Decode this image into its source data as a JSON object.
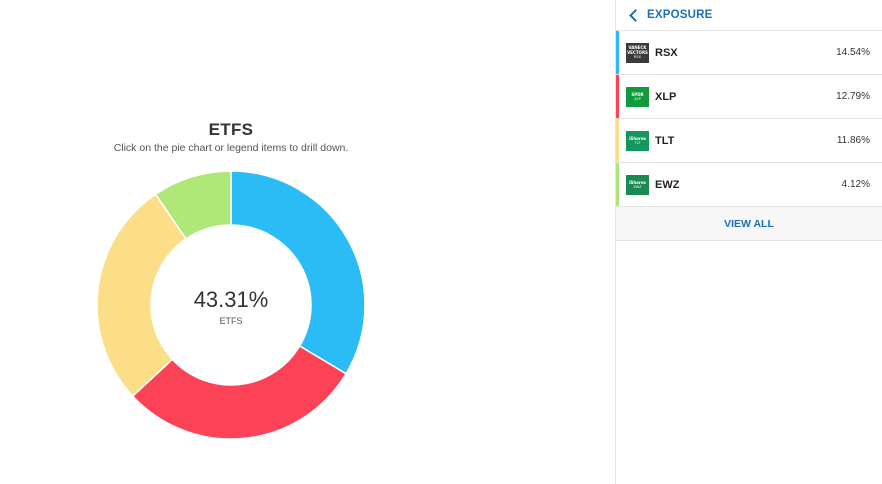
{
  "chart_data": {
    "type": "pie",
    "title": "ETFS",
    "subtitle": "Click on the pie chart or legend items to drill down.",
    "center_value": "43.31%",
    "center_label": "ETFS",
    "categories": [
      "RSX",
      "XLP",
      "TLT",
      "EWZ"
    ],
    "values": [
      14.54,
      12.79,
      11.86,
      4.12
    ],
    "colors": [
      "#2bbcf5",
      "#fb4257",
      "#fcde88",
      "#afe878"
    ]
  },
  "panel": {
    "title": "EXPOSURE",
    "back_icon": "chevron-left-icon",
    "view_all_label": "VIEW ALL",
    "items": [
      {
        "ticker": "RSX",
        "percent": "14.54%",
        "accent": "#2bbcf5",
        "logo_top": "VANECK VECTORS",
        "logo_bottom": "RSX"
      },
      {
        "ticker": "XLP",
        "percent": "12.79%",
        "accent": "#fb4257",
        "logo_top": "SPDR",
        "logo_bottom": "XLP"
      },
      {
        "ticker": "TLT",
        "percent": "11.86%",
        "accent": "#fcde88",
        "logo_top": "iShares",
        "logo_bottom": "TLT"
      },
      {
        "ticker": "EWZ",
        "percent": "4.12%",
        "accent": "#afe878",
        "logo_top": "iShares",
        "logo_bottom": "EWZ"
      }
    ]
  }
}
